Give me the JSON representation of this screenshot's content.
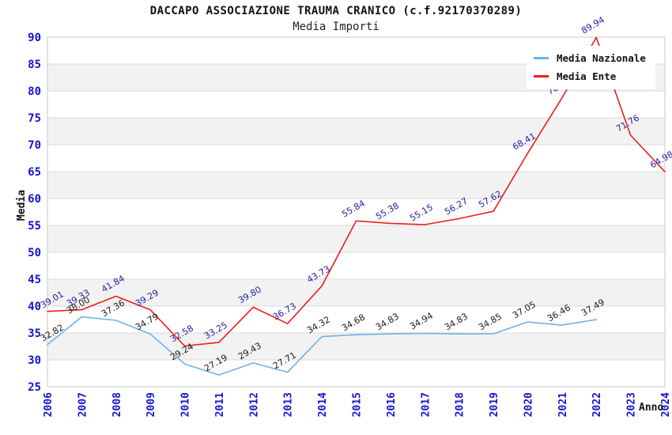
{
  "chart_data": {
    "type": "line",
    "title": "DACCAPO ASSOCIAZIONE TRAUMA CRANICO (c.f.92170370289)",
    "subtitle": "Media Importi",
    "xlabel": "Anno",
    "ylabel": "Media",
    "ylim": [
      25,
      90
    ],
    "ytick_step": 5,
    "yticks": [
      25,
      30,
      35,
      40,
      45,
      50,
      55,
      60,
      65,
      70,
      75,
      80,
      85,
      90
    ],
    "categories": [
      "2006",
      "2007",
      "2008",
      "2009",
      "2010",
      "2011",
      "2012",
      "2013",
      "2014",
      "2015",
      "2016",
      "2017",
      "2018",
      "2019",
      "2020",
      "2021",
      "2022",
      "2023",
      "2024"
    ],
    "series": [
      {
        "name": "Media Nazionale",
        "color": "#6db3e8",
        "label_color": "#1a1a1a",
        "values": [
          32.82,
          38.0,
          37.36,
          34.79,
          29.24,
          27.19,
          29.43,
          27.71,
          34.32,
          34.68,
          34.83,
          34.94,
          34.83,
          34.85,
          37.05,
          36.46,
          37.49,
          null,
          null
        ]
      },
      {
        "name": "Media Ente",
        "color": "#ee1c1c",
        "label_color": "#1f1f9e",
        "values": [
          39.01,
          39.33,
          41.84,
          39.29,
          32.58,
          33.25,
          39.8,
          36.73,
          43.73,
          55.84,
          55.38,
          55.15,
          56.27,
          57.62,
          68.41,
          78.68,
          89.94,
          71.76,
          64.98
        ]
      }
    ],
    "legend_position": "top-right",
    "grid": "horizontal",
    "styles": {
      "axis_tick_color": "#1414cc",
      "band_color": "#f2f2f2",
      "grid_color": "#d9d9d9",
      "plot_border_color": "#c9c9c9"
    }
  }
}
